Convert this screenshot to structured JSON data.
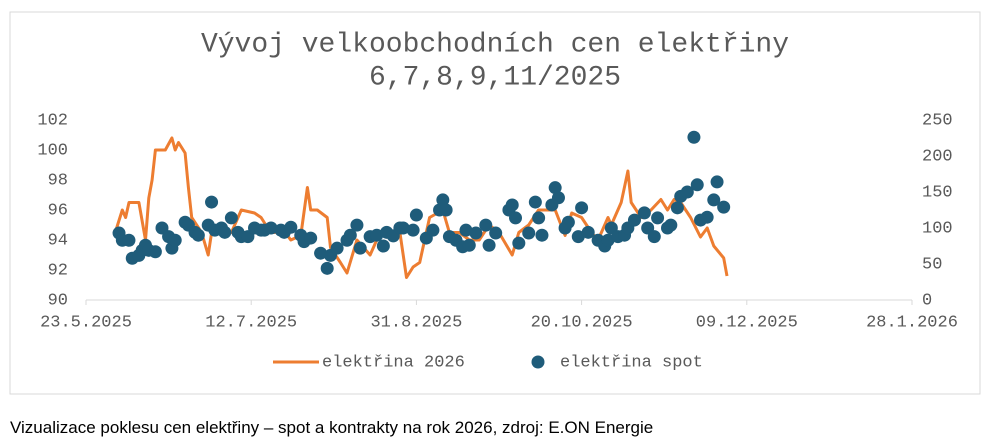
{
  "chart_data": {
    "type": "line-scatter",
    "title": "Vývoj velkoobchodních cen elektřiny",
    "subtitle": "6,7,8,9,11/2025",
    "xlim": [
      "2025-05-23",
      "2026-01-28"
    ],
    "xticks": [
      {
        "value": "2025-05-23",
        "label": "23.5.2025"
      },
      {
        "value": "2025-07-12",
        "label": "12.7.2025"
      },
      {
        "value": "2025-08-31",
        "label": "31.8.2025"
      },
      {
        "value": "2025-10-20",
        "label": "20.10.2025"
      },
      {
        "value": "2025-12-09",
        "label": "09.12.2025"
      },
      {
        "value": "2026-01-28",
        "label": "28.1.2026"
      }
    ],
    "ylim": [
      90,
      102
    ],
    "yticks": [
      90,
      92,
      94,
      96,
      98,
      100,
      102
    ],
    "y2lim": [
      0,
      250
    ],
    "y2ticks": [
      0,
      50,
      100,
      150,
      200,
      250
    ],
    "grid": false,
    "legend": "bottom",
    "series": [
      {
        "name": "elektřina 2026",
        "type": "line",
        "color": "#ED7D31",
        "x": [
          "2025-06-01",
          "2025-06-03",
          "2025-06-04",
          "2025-06-05",
          "2025-06-08",
          "2025-06-10",
          "2025-06-11",
          "2025-06-12",
          "2025-06-13",
          "2025-06-16",
          "2025-06-18",
          "2025-06-19",
          "2025-06-20",
          "2025-06-22",
          "2025-06-23",
          "2025-06-24",
          "2025-06-27",
          "2025-06-29",
          "2025-06-30",
          "2025-07-03",
          "2025-07-06",
          "2025-07-09",
          "2025-07-13",
          "2025-07-15",
          "2025-07-17",
          "2025-07-19",
          "2025-07-22",
          "2025-07-24",
          "2025-07-27",
          "2025-07-29",
          "2025-07-30",
          "2025-08-01",
          "2025-08-04",
          "2025-08-05",
          "2025-08-08",
          "2025-08-10",
          "2025-08-13",
          "2025-08-15",
          "2025-08-17",
          "2025-08-20",
          "2025-08-24",
          "2025-08-26",
          "2025-08-28",
          "2025-08-30",
          "2025-09-01",
          "2025-09-04",
          "2025-09-08",
          "2025-09-10",
          "2025-09-13",
          "2025-09-16",
          "2025-09-19",
          "2025-09-22",
          "2025-09-25",
          "2025-09-29",
          "2025-10-01",
          "2025-10-04",
          "2025-10-07",
          "2025-10-12",
          "2025-10-15",
          "2025-10-17",
          "2025-10-20",
          "2025-10-23",
          "2025-10-25",
          "2025-10-28",
          "2025-10-29",
          "2025-11-01",
          "2025-11-03",
          "2025-11-04",
          "2025-11-07",
          "2025-11-10",
          "2025-11-13",
          "2025-11-15",
          "2025-11-17",
          "2025-11-19",
          "2025-11-22",
          "2025-11-25",
          "2025-11-27",
          "2025-11-29",
          "2025-12-02",
          "2025-12-03"
        ],
        "values": [
          94.6,
          96,
          95.5,
          96.5,
          96.5,
          94,
          96.8,
          98,
          100,
          100,
          100.8,
          100,
          100.5,
          99.8,
          97.5,
          95.5,
          94.5,
          93,
          94.5,
          94.5,
          94.5,
          96,
          95.8,
          95.5,
          94.8,
          94.5,
          94.6,
          94,
          94.3,
          97.5,
          96,
          96,
          95.5,
          93.5,
          92.5,
          91.8,
          94,
          93.5,
          93,
          94.5,
          94,
          94.5,
          91.5,
          92.2,
          92.5,
          95.5,
          96,
          94.5,
          94.5,
          94,
          94,
          95,
          94.5,
          93,
          94.5,
          95,
          96,
          96,
          94.3,
          95.8,
          95.5,
          94.5,
          94,
          95.5,
          95,
          96.5,
          98.6,
          96.5,
          95.5,
          96,
          96.7,
          96,
          96.7,
          96.5,
          95.5,
          94.2,
          94.8,
          93.6,
          92.8,
          91.6
        ]
      },
      {
        "name": "elektřina spot",
        "type": "scatter",
        "axis": "y2",
        "color": "#1F5C7A",
        "x": [
          "2025-06-02",
          "2025-06-03",
          "2025-06-05",
          "2025-06-06",
          "2025-06-08",
          "2025-06-09",
          "2025-06-10",
          "2025-06-11",
          "2025-06-13",
          "2025-06-15",
          "2025-06-17",
          "2025-06-18",
          "2025-06-19",
          "2025-06-22",
          "2025-06-23",
          "2025-06-25",
          "2025-06-26",
          "2025-06-29",
          "2025-06-30",
          "2025-07-01",
          "2025-07-03",
          "2025-07-04",
          "2025-07-06",
          "2025-07-08",
          "2025-07-09",
          "2025-07-11",
          "2025-07-13",
          "2025-07-15",
          "2025-07-16",
          "2025-07-18",
          "2025-07-21",
          "2025-07-22",
          "2025-07-24",
          "2025-07-27",
          "2025-07-28",
          "2025-07-30",
          "2025-08-02",
          "2025-08-04",
          "2025-08-05",
          "2025-08-07",
          "2025-08-10",
          "2025-08-11",
          "2025-08-13",
          "2025-08-14",
          "2025-08-17",
          "2025-08-19",
          "2025-08-21",
          "2025-08-22",
          "2025-08-24",
          "2025-08-26",
          "2025-08-27",
          "2025-08-30",
          "2025-08-31",
          "2025-09-03",
          "2025-09-05",
          "2025-09-07",
          "2025-09-08",
          "2025-09-09",
          "2025-09-10",
          "2025-09-12",
          "2025-09-14",
          "2025-09-15",
          "2025-09-16",
          "2025-09-18",
          "2025-09-21",
          "2025-09-22",
          "2025-09-24",
          "2025-09-28",
          "2025-09-29",
          "2025-09-30",
          "2025-10-01",
          "2025-10-04",
          "2025-10-06",
          "2025-10-07",
          "2025-10-08",
          "2025-10-11",
          "2025-10-12",
          "2025-10-13",
          "2025-10-15",
          "2025-10-16",
          "2025-10-19",
          "2025-10-20",
          "2025-10-22",
          "2025-10-25",
          "2025-10-27",
          "2025-10-28",
          "2025-10-29",
          "2025-10-31",
          "2025-11-02",
          "2025-11-03",
          "2025-11-05",
          "2025-11-08",
          "2025-11-09",
          "2025-11-11",
          "2025-11-12",
          "2025-11-15",
          "2025-11-16",
          "2025-11-18",
          "2025-11-19",
          "2025-11-21",
          "2025-11-23",
          "2025-11-24",
          "2025-11-25",
          "2025-11-27",
          "2025-11-29",
          "2025-11-30",
          "2025-12-02"
        ],
        "values": [
          93,
          83,
          83,
          58,
          62,
          69,
          76,
          69,
          67,
          100,
          88,
          72,
          83,
          108,
          104,
          94,
          90,
          104,
          136,
          97,
          100,
          94,
          114,
          94,
          88,
          88,
          100,
          97,
          97,
          100,
          97,
          94,
          101,
          90,
          81,
          86,
          65,
          44,
          62,
          72,
          83,
          90,
          104,
          72,
          88,
          90,
          75,
          94,
          89,
          100,
          100,
          97,
          118,
          86,
          97,
          125,
          139,
          125,
          88,
          83,
          74,
          97,
          76,
          93,
          104,
          76,
          93,
          125,
          132,
          114,
          79,
          93,
          136,
          114,
          90,
          132,
          156,
          142,
          100,
          108,
          88,
          128,
          94,
          83,
          75,
          83,
          100,
          88,
          90,
          100,
          111,
          121,
          100,
          88,
          114,
          100,
          104,
          128,
          144,
          150,
          226,
          160,
          111,
          115,
          139,
          164,
          129
        ]
      }
    ]
  },
  "caption": "Vizualizace poklesu cen elektřiny – spot a kontrakty na rok 2026, zdroj: E.ON Energie"
}
